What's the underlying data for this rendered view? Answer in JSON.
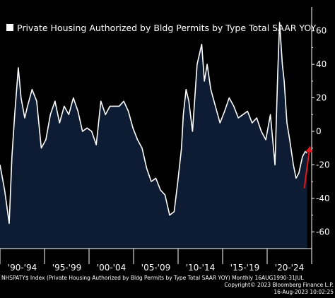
{
  "chart_data": {
    "type": "area",
    "title": "Private Housing Authorized by Bldg Permits by Type Total SAAR YOY",
    "ylim": [
      -70,
      70
    ],
    "yticks": [
      -60,
      -40,
      -20,
      0,
      20,
      40,
      60
    ],
    "ytick_labels": [
      "-60",
      "-40",
      "-20",
      "0",
      "20",
      "40",
      "60"
    ],
    "xtick_labels": [
      "'90-'94",
      "'95-'99",
      "'00-'04",
      "'05-'09",
      "'10-'14",
      "'15-'19",
      "'20-'24"
    ],
    "xlim": [
      1990.0,
      2024.0
    ],
    "grid": false,
    "legend_position": "top-left",
    "colors": {
      "fill": "#0d1b33",
      "line": "#ffffff",
      "arrow": "#e8161b"
    },
    "series": [
      {
        "name": "Private Housing Authorized by Bldg Permits by Type Total SAAR YOY",
        "x": [
          1990.0,
          1990.5,
          1991.0,
          1991.3,
          1991.6,
          1992.0,
          1992.3,
          1992.7,
          1993.0,
          1993.5,
          1994.0,
          1994.5,
          1995.0,
          1995.5,
          1996.0,
          1996.5,
          1997.0,
          1997.5,
          1998.0,
          1998.5,
          1999.0,
          1999.5,
          2000.0,
          2000.5,
          2001.0,
          2001.5,
          2002.0,
          2002.5,
          2003.0,
          2003.5,
          2004.0,
          2004.5,
          2005.0,
          2005.5,
          2006.0,
          2006.5,
          2007.0,
          2007.5,
          2008.0,
          2008.5,
          2009.0,
          2009.4,
          2009.8,
          2010.0,
          2010.3,
          2010.6,
          2011.0,
          2011.5,
          2012.0,
          2012.3,
          2012.6,
          2013.0,
          2013.5,
          2014.0,
          2014.5,
          2015.0,
          2015.5,
          2016.0,
          2016.5,
          2017.0,
          2017.5,
          2018.0,
          2018.5,
          2019.0,
          2019.5,
          2020.0,
          2020.3,
          2020.5,
          2020.8,
          2021.0,
          2021.3,
          2021.6,
          2022.0,
          2022.3,
          2022.6,
          2023.0,
          2023.3,
          2023.5
        ],
        "y": [
          -20,
          -35,
          -55,
          -15,
          10,
          38,
          20,
          8,
          15,
          25,
          18,
          -10,
          -5,
          10,
          18,
          5,
          15,
          10,
          20,
          12,
          0,
          2,
          0,
          -8,
          18,
          10,
          15,
          15,
          15,
          18,
          12,
          2,
          -5,
          -10,
          -22,
          -30,
          -28,
          -35,
          -38,
          -50,
          -48,
          -30,
          -10,
          10,
          25,
          18,
          0,
          40,
          52,
          30,
          40,
          25,
          15,
          5,
          12,
          20,
          15,
          8,
          10,
          12,
          5,
          8,
          0,
          -5,
          10,
          -20,
          35,
          65,
          40,
          30,
          5,
          -5,
          -20,
          -28,
          -25,
          -15,
          -12,
          -13
        ]
      }
    ],
    "annotations": [
      {
        "type": "arrow",
        "from": [
          2023.2,
          -34
        ],
        "to": [
          2023.8,
          -9
        ],
        "color": "#e8161b"
      }
    ]
  },
  "footer": {
    "source": "NHSPATY$ Index (Private Housing Authorized by Bldg Permits by Type Total SAAR YOY)  Monthly 16AUG1990-31JUL",
    "copyright": "Copyright© 2023 Bloomberg Finance L.P.",
    "timestamp": "16-Aug-2023 10:02:25"
  }
}
